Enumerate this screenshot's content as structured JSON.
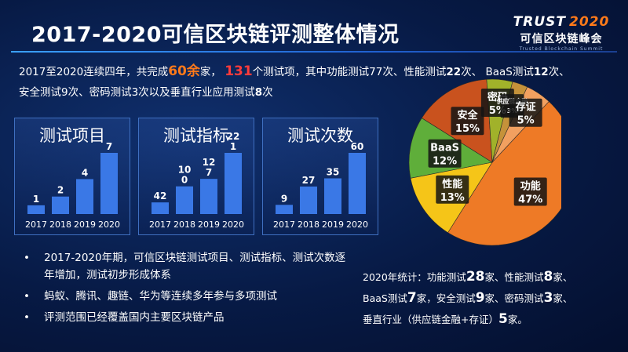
{
  "title": "2017-2020可信区块链评测整体情况",
  "logo": {
    "brand": "TRUST",
    "year": "2020",
    "name_cn": "可信区块链峰会",
    "name_en": "Trusted Blockchain Summit"
  },
  "summary": {
    "p1": "2017至2020连续四年，共完成",
    "companies": "60余",
    "p2": "家，",
    "items": "131",
    "p3": "个测试项，其中功能测试77次、性能测试",
    "perf": "22",
    "p4": "次、 BaaS测试",
    "baas": "12",
    "p5": "次、",
    "p6": "安全测试9次、密码测试3次以及垂直行业应用测试",
    "vert": "8",
    "p7": "次"
  },
  "colors": {
    "panel_bar": "#3a78e6",
    "orange": "#ff7a1a",
    "red": "#ff3b3b"
  },
  "chart_data": [
    {
      "type": "bar",
      "title": "测试项目",
      "categories": [
        "2017",
        "2018",
        "2019",
        "2020"
      ],
      "values": [
        1,
        2,
        4,
        7
      ],
      "labels": [
        "1",
        "2",
        "4",
        "7"
      ],
      "ylim": [
        0,
        7
      ]
    },
    {
      "type": "bar",
      "title": "测试指标",
      "categories": [
        "2017",
        "2018",
        "2019",
        "2020"
      ],
      "values": [
        42,
        100,
        127,
        221
      ],
      "labels": [
        "42",
        "10\n0",
        "12\n7",
        "22\n1"
      ],
      "ylim": [
        0,
        221
      ]
    },
    {
      "type": "bar",
      "title": "测试次数",
      "categories": [
        "2017",
        "2018",
        "2019",
        "2020"
      ],
      "values": [
        9,
        27,
        35,
        60
      ],
      "labels": [
        "9",
        "27",
        "35",
        "60"
      ],
      "ylim": [
        0,
        60
      ]
    },
    {
      "type": "pie",
      "slices": [
        {
          "name": "功能",
          "value": 47,
          "label": "47%",
          "color": "#ee7a26"
        },
        {
          "name": "性能",
          "value": 13,
          "label": "13%",
          "color": "#f5c518"
        },
        {
          "name": "BaaS",
          "value": 12,
          "label": "12%",
          "color": "#5fae3a"
        },
        {
          "name": "安全",
          "value": 15,
          "label": "15%",
          "color": "#c9521e"
        },
        {
          "name": "密码",
          "value": 5,
          "label": "5%",
          "color": "#a1b22a"
        },
        {
          "name": "供应链金融",
          "value": 3,
          "label": "3%",
          "color": "#c5923a"
        },
        {
          "name": "存证",
          "value": 5,
          "label": "5%",
          "color": "#f2a060"
        }
      ]
    }
  ],
  "bullets": [
    "2017-2020年期，可信区块链测试项目、测试指标、测试次数逐年增加，测试初步形成体系",
    "蚂蚁、腾讯、趣链、华为等连续多年参与多项测试",
    "评测范围已经覆盖国内主要区块链产品"
  ],
  "stats": {
    "l1a": "2020年统计：功能测试",
    "f": "28",
    "l1b": "家、性能测试",
    "p": "8",
    "l1c": "家、",
    "l2a": "BaaS测试",
    "b": "7",
    "l2b": "家，安全测试",
    "s": "9",
    "l2c": "家、密码测试",
    "c": "3",
    "l2d": "家、",
    "l3a": "垂直行业（供应链金融+存证）",
    "v": "5",
    "l3b": "家。"
  }
}
